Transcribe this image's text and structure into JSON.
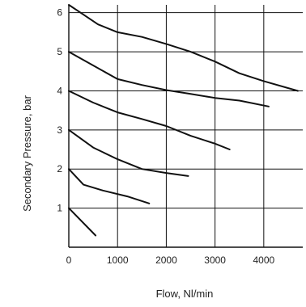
{
  "chart_data": {
    "type": "line",
    "title": "",
    "xlabel": "Flow, Nl/min",
    "ylabel": "Secondary Pressure, bar",
    "xlim": [
      0,
      4800
    ],
    "ylim": [
      0,
      6.2
    ],
    "grid": true,
    "legend": "none",
    "x_ticks": [
      0,
      1000,
      2000,
      3000,
      4000
    ],
    "x_tick_labels": [
      "0",
      "1000",
      "2000",
      "3000",
      "4000"
    ],
    "y_ticks": [
      1,
      2,
      3,
      4,
      5,
      6
    ],
    "y_tick_labels": [
      "1",
      "2",
      "3",
      "4",
      "5",
      "6"
    ],
    "colors": {
      "line": "#111111",
      "grid": "#111111",
      "axis": "#111111",
      "text": "#222222",
      "background": "#ffffff"
    },
    "series": [
      {
        "points": [
          [
            0,
            6.2
          ],
          [
            300,
            5.95
          ],
          [
            600,
            5.7
          ],
          [
            1000,
            5.5
          ],
          [
            1500,
            5.38
          ],
          [
            2000,
            5.2
          ],
          [
            2500,
            5.0
          ],
          [
            3000,
            4.75
          ],
          [
            3500,
            4.45
          ],
          [
            4000,
            4.25
          ],
          [
            4700,
            4.0
          ]
        ]
      },
      {
        "points": [
          [
            0,
            5.0
          ],
          [
            500,
            4.65
          ],
          [
            1000,
            4.3
          ],
          [
            1500,
            4.15
          ],
          [
            2000,
            4.02
          ],
          [
            2500,
            3.92
          ],
          [
            3000,
            3.82
          ],
          [
            3500,
            3.75
          ],
          [
            4100,
            3.6
          ]
        ]
      },
      {
        "points": [
          [
            0,
            4.0
          ],
          [
            500,
            3.7
          ],
          [
            1000,
            3.45
          ],
          [
            1500,
            3.28
          ],
          [
            2000,
            3.1
          ],
          [
            2500,
            2.85
          ],
          [
            3000,
            2.65
          ],
          [
            3300,
            2.5
          ]
        ]
      },
      {
        "points": [
          [
            0,
            3.0
          ],
          [
            500,
            2.55
          ],
          [
            1000,
            2.25
          ],
          [
            1500,
            2.0
          ],
          [
            2000,
            1.9
          ],
          [
            2450,
            1.82
          ]
        ]
      },
      {
        "points": [
          [
            0,
            2.0
          ],
          [
            300,
            1.6
          ],
          [
            700,
            1.45
          ],
          [
            1200,
            1.3
          ],
          [
            1650,
            1.12
          ]
        ]
      },
      {
        "points": [
          [
            0,
            1.0
          ],
          [
            550,
            0.3
          ]
        ]
      }
    ]
  }
}
